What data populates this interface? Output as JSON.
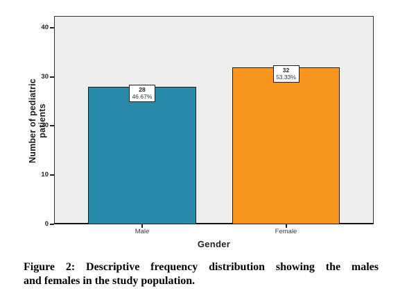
{
  "chart_data": {
    "type": "bar",
    "title": "",
    "categories": [
      "Male",
      "Female"
    ],
    "values": [
      28,
      32
    ],
    "bar_labels": [
      {
        "value": "28",
        "percent": "46.67%"
      },
      {
        "value": "32",
        "percent": "53.33%"
      }
    ],
    "bar_colors": [
      "#2a8aa9",
      "#f7941d"
    ],
    "xlabel": "Gender",
    "ylabel": "Number of pediatric patients",
    "yticks": [
      0,
      10,
      20,
      30,
      40
    ],
    "ylim": [
      0,
      42.4
    ],
    "plot_background": "#ededed",
    "grid": "off",
    "legend": "none"
  },
  "caption": {
    "line1": "Figure 2: Descriptive frequency distribution showing the males",
    "line2": "and females in the study population."
  }
}
